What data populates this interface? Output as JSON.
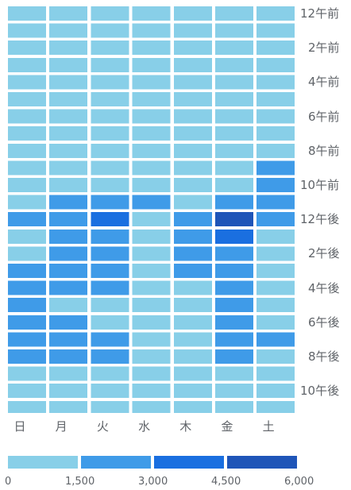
{
  "chart_data": {
    "type": "heatmap",
    "columns": [
      "日",
      "月",
      "火",
      "水",
      "木",
      "金",
      "土"
    ],
    "hours": 24,
    "hour_labels": [
      "12午前",
      "2午前",
      "4午前",
      "6午前",
      "8午前",
      "10午前",
      "12午後",
      "2午後",
      "4午後",
      "6午後",
      "8午後",
      "10午後"
    ],
    "values": [
      [
        200,
        200,
        200,
        200,
        200,
        200,
        200
      ],
      [
        200,
        200,
        200,
        200,
        200,
        200,
        200
      ],
      [
        200,
        200,
        200,
        200,
        200,
        200,
        200
      ],
      [
        200,
        200,
        200,
        200,
        200,
        200,
        200
      ],
      [
        200,
        200,
        200,
        200,
        200,
        200,
        200
      ],
      [
        200,
        200,
        200,
        200,
        200,
        200,
        200
      ],
      [
        200,
        200,
        200,
        200,
        200,
        200,
        200
      ],
      [
        200,
        200,
        200,
        200,
        200,
        200,
        200
      ],
      [
        200,
        200,
        200,
        200,
        200,
        200,
        200
      ],
      [
        200,
        200,
        200,
        200,
        200,
        200,
        2000
      ],
      [
        200,
        200,
        200,
        200,
        200,
        200,
        2000
      ],
      [
        200,
        2000,
        2000,
        2000,
        200,
        2000,
        2000
      ],
      [
        2200,
        2200,
        3500,
        200,
        2200,
        5000,
        2200
      ],
      [
        200,
        2000,
        2000,
        200,
        2000,
        3500,
        200
      ],
      [
        200,
        2000,
        2000,
        200,
        2000,
        2000,
        200
      ],
      [
        2000,
        2000,
        2000,
        200,
        2000,
        2000,
        200
      ],
      [
        2000,
        2000,
        2000,
        200,
        200,
        2000,
        200
      ],
      [
        2000,
        200,
        200,
        200,
        200,
        2000,
        200
      ],
      [
        2000,
        2000,
        200,
        200,
        200,
        2000,
        200
      ],
      [
        2000,
        2000,
        2000,
        200,
        200,
        2000,
        2000
      ],
      [
        2000,
        2000,
        2000,
        200,
        200,
        2000,
        200
      ],
      [
        200,
        200,
        200,
        200,
        200,
        200,
        200
      ],
      [
        200,
        200,
        200,
        200,
        200,
        200,
        200
      ],
      [
        200,
        200,
        200,
        200,
        200,
        200,
        200
      ]
    ],
    "legend": {
      "ticks": [
        "0",
        "1,500",
        "3,000",
        "4,500",
        "6,000"
      ],
      "bins": [
        0,
        1500,
        3000,
        4500,
        6000
      ],
      "colors": [
        "#88cfe8",
        "#3f9be8",
        "#1a6fe0",
        "#1f55b8"
      ]
    }
  }
}
